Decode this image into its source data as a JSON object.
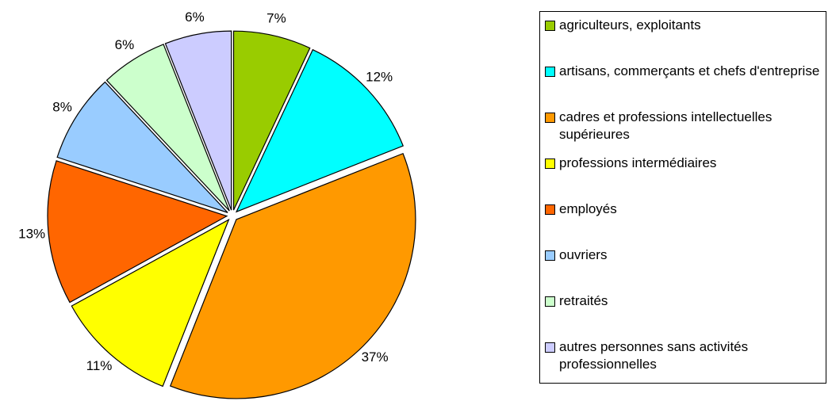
{
  "chart_data": {
    "type": "pie",
    "categories": [
      "agriculteurs, exploitants",
      "artisans, commerçants et chefs d'entreprise",
      "cadres et professions intellectuelles supérieures",
      "professions intermédiaires",
      "employés",
      "ouvriers",
      "retraités",
      "autres personnes sans activités professionnelles"
    ],
    "values": [
      7,
      12,
      37,
      11,
      13,
      8,
      6,
      6
    ],
    "value_labels": [
      "7%",
      "12%",
      "37%",
      "11%",
      "13%",
      "8%",
      "6%",
      "6%"
    ],
    "colors": [
      "#99cc00",
      "#00ffff",
      "#ff9900",
      "#ffff00",
      "#ff6600",
      "#99ccff",
      "#ccffcc",
      "#ccccff"
    ],
    "legend": "right"
  }
}
